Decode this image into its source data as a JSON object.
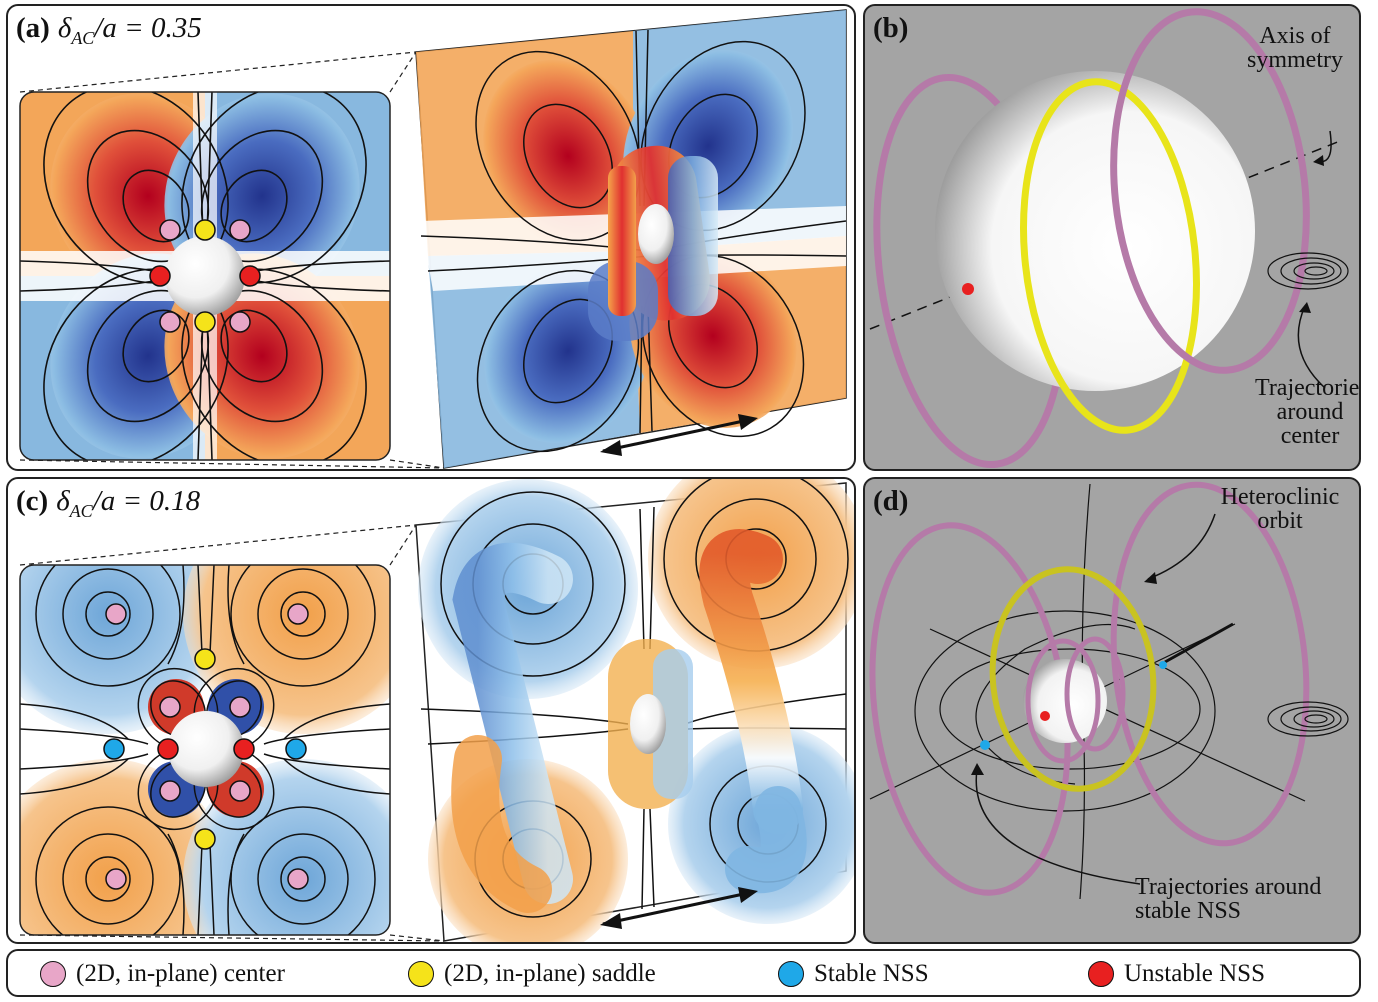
{
  "panels": {
    "a": {
      "label": "(a)",
      "math": "δ",
      "sub": "AC",
      "rest": "/a = 0.35"
    },
    "b": {
      "label": "(b)",
      "annotations": {
        "axis_line1": "Axis of",
        "axis_line2": "symmetry",
        "traj_line1": "Trajectories",
        "traj_line2": "around",
        "traj_line3": "center"
      }
    },
    "c": {
      "label": "(c)",
      "math": "δ",
      "sub": "AC",
      "rest": "/a = 0.18"
    },
    "d": {
      "label": "(d)",
      "annotations": {
        "hetero_line1": "Heteroclinic",
        "hetero_line2": "orbit",
        "traj_line1": "Trajectories around",
        "traj_line2": "stable NSS"
      }
    }
  },
  "legend": {
    "items": [
      {
        "label": "(2D, in-plane) center",
        "color": "#e8a6c8"
      },
      {
        "label": "(2D, in-plane) saddle",
        "color": "#f5e31a"
      },
      {
        "label": "Stable NSS",
        "color": "#1fa8e8"
      },
      {
        "label": "Unstable NSS",
        "color": "#e82020"
      }
    ]
  },
  "colors": {
    "orange": "#f2a24a",
    "red": "#c8102e",
    "blue": "#2a3f98",
    "lightblue": "#86b7de",
    "ring": "#b57aa8",
    "yellow": "#e8e41a",
    "panel_gray": "#a4a4a4"
  }
}
